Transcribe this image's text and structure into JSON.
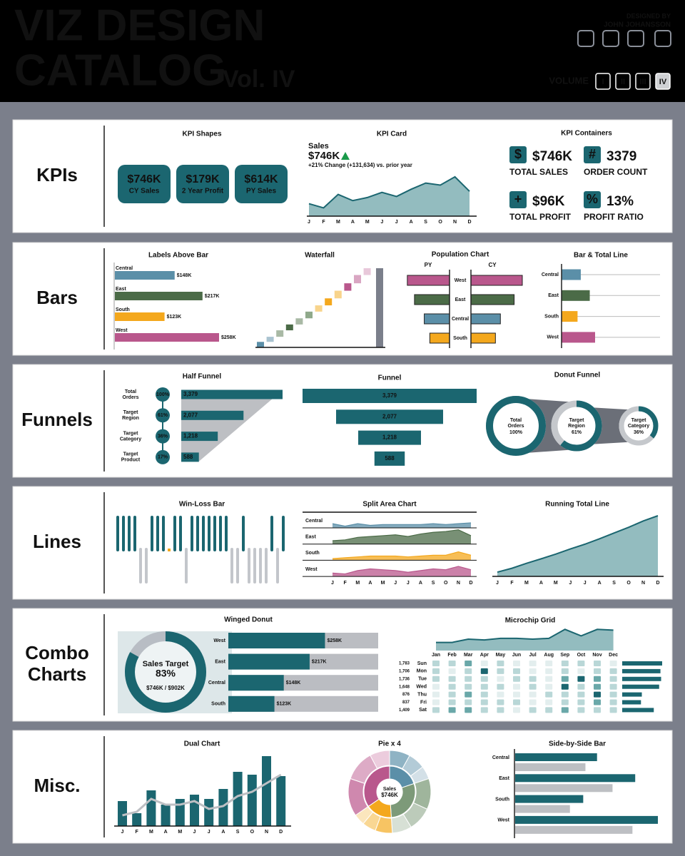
{
  "header": {
    "title_line1": "VIZ DESIGN",
    "title_line2": "CATALOG",
    "subtitle": "Vol. IV",
    "credit_label": "DESIGNED BY",
    "author": "JOHN JOHANSSON",
    "volume_label": "VOLUME",
    "volumes": [
      "I",
      "II",
      "III",
      "IV"
    ],
    "active_volume": "IV"
  },
  "kpis": {
    "label": "KPIs",
    "shapes": {
      "title": "KPI Shapes",
      "items": [
        {
          "value": "$746K",
          "label": "CY Sales"
        },
        {
          "value": "$179K",
          "label": "2 Year Profit"
        },
        {
          "value": "$614K",
          "label": "PY Sales"
        }
      ],
      "color": "#1b6670",
      "value_color": "#f4a81d"
    },
    "card": {
      "title": "KPI Card",
      "label": "Sales",
      "value": "$746K",
      "change": "+21% Change (+131,634) vs. prior year",
      "months": [
        "J",
        "F",
        "M",
        "A",
        "M",
        "J",
        "J",
        "A",
        "S",
        "O",
        "N",
        "D"
      ],
      "values": [
        52,
        48,
        61,
        55,
        58,
        63,
        59,
        66,
        72,
        70,
        78,
        64
      ],
      "ylim": [
        40,
        80
      ],
      "color": "#1b6670",
      "fill": "#93bcbf"
    },
    "containers": {
      "title": "KPI Containers",
      "items": [
        {
          "icon": "$",
          "value": "$746K",
          "label": "TOTAL SALES"
        },
        {
          "icon": "#",
          "value": "3379",
          "label": "ORDER COUNT"
        },
        {
          "icon": "+",
          "value": "$96K",
          "label": "TOTAL PROFIT"
        },
        {
          "icon": "%",
          "value": "13%",
          "label": "PROFIT RATIO"
        }
      ]
    }
  },
  "bars": {
    "label": "Bars",
    "labels_above": {
      "title": "Labels Above Bar",
      "categories": [
        "Central",
        "East",
        "South",
        "West"
      ],
      "values": [
        148,
        217,
        123,
        258
      ],
      "value_labels": [
        "$148K",
        "$217K",
        "$123K",
        "$258K"
      ],
      "colors": [
        "#5b8fa8",
        "#4b6b47",
        "#f4a81d",
        "#b9578c"
      ]
    },
    "waterfall": {
      "title": "Waterfall",
      "values": [
        52,
        48,
        61,
        55,
        58,
        63,
        59,
        66,
        72,
        70,
        78,
        64
      ],
      "colors": [
        "#5b8fa8",
        "#a9c3d0",
        "#a9b9a5",
        "#4b6b47",
        "#a9b9a5",
        "#8fa98b",
        "#f8d48c",
        "#f4a81d",
        "#f8d48c",
        "#b9578c",
        "#d9a6c2",
        "#e8c8da"
      ],
      "total": 746,
      "total_color": "#7b7f8b"
    },
    "population": {
      "title": "Population Chart",
      "left_label": "PY",
      "right_label": "CY",
      "categories": [
        "West",
        "East",
        "Central",
        "South"
      ],
      "left_values": [
        212,
        176,
        127,
        99
      ],
      "right_values": [
        258,
        217,
        148,
        123
      ],
      "colors": [
        "#b9578c",
        "#4b6b47",
        "#5b8fa8",
        "#f4a81d"
      ]
    },
    "bar_total": {
      "title": "Bar & Total Line",
      "categories": [
        "Central",
        "East",
        "South",
        "West"
      ],
      "values": [
        148,
        217,
        123,
        258
      ],
      "colors": [
        "#5b8fa8",
        "#4b6b47",
        "#f4a81d",
        "#b9578c"
      ]
    }
  },
  "funnels": {
    "label": "Funnels",
    "half": {
      "title": "Half Funnel",
      "stages": [
        [
          "Total",
          "Orders"
        ],
        [
          "Target",
          "Region"
        ],
        [
          "Target",
          "Category"
        ],
        [
          "Target",
          "Product"
        ]
      ],
      "pcts": [
        100,
        61,
        36,
        17
      ],
      "pct_labels": [
        "100%",
        "61%",
        "36%",
        "17%"
      ],
      "values": [
        3379,
        2077,
        1218,
        588
      ],
      "value_labels": [
        "3,379",
        "2,077",
        "1,218",
        "588"
      ]
    },
    "funnel": {
      "title": "Funnel",
      "values": [
        3379,
        2077,
        1218,
        588
      ],
      "value_labels": [
        "3,379",
        "2,077",
        "1,218",
        "588"
      ]
    },
    "donut": {
      "title": "Donut Funnel",
      "stages": [
        [
          "Total",
          "Orders"
        ],
        [
          "Target",
          "Region"
        ],
        [
          "Target",
          "Category"
        ]
      ],
      "pcts": [
        100,
        61,
        36
      ],
      "pct_labels": [
        "100%",
        "61%",
        "36%"
      ]
    }
  },
  "lines": {
    "label": "Lines",
    "winloss": {
      "title": "Win-Loss Bar",
      "values": [
        1,
        1,
        1,
        1,
        -1,
        -1,
        1,
        1,
        1,
        0,
        1,
        1,
        -1,
        1,
        1,
        1,
        1,
        1,
        1,
        1,
        -1,
        -1,
        1,
        -1,
        -1,
        -1,
        -1,
        1,
        -1,
        1
      ],
      "win_color": "#1b6670",
      "loss_color": "#c3c6cb",
      "tie_color": "#f4a81d"
    },
    "split": {
      "title": "Split Area Chart",
      "months": [
        "J",
        "F",
        "M",
        "A",
        "M",
        "J",
        "J",
        "A",
        "S",
        "O",
        "N",
        "D"
      ],
      "series": [
        {
          "name": "Central",
          "color": "#5b8fa8",
          "values": [
            5,
            2,
            5,
            3,
            4,
            4,
            4,
            4,
            5,
            4,
            5,
            6
          ]
        },
        {
          "name": "East",
          "color": "#4b6b47",
          "values": [
            4,
            5,
            8,
            9,
            10,
            11,
            9,
            12,
            14,
            15,
            17,
            10
          ]
        },
        {
          "name": "South",
          "color": "#f4a81d",
          "values": [
            2,
            3,
            4,
            5,
            5,
            5,
            4,
            5,
            6,
            6,
            10,
            6
          ]
        },
        {
          "name": "West",
          "color": "#b9578c",
          "values": [
            4,
            3,
            7,
            9,
            8,
            7,
            5,
            7,
            9,
            8,
            12,
            8
          ]
        }
      ]
    },
    "running": {
      "title": "Running Total Line",
      "months": [
        "J",
        "F",
        "M",
        "A",
        "M",
        "J",
        "J",
        "A",
        "S",
        "O",
        "N",
        "D"
      ],
      "values": [
        52,
        48,
        61,
        55,
        58,
        63,
        59,
        66,
        72,
        70,
        78,
        64
      ],
      "color": "#1b6670",
      "fill": "#93bcbf"
    }
  },
  "combo": {
    "label": [
      "Combo",
      "Charts"
    ],
    "winged": {
      "title": "Winged Donut",
      "center_title": "Sales Target",
      "pct": 83,
      "pct_label": "83%",
      "ratio": "$746K / $902K",
      "categories": [
        "West",
        "East",
        "Central",
        "South"
      ],
      "values": [
        258,
        217,
        148,
        123
      ],
      "value_labels": [
        "$258K",
        "$217K",
        "$148K",
        "$123K"
      ],
      "xlim": [
        0,
        400
      ]
    },
    "microchip": {
      "title": "Microchip Grid",
      "months": [
        "Jan",
        "Feb",
        "Mar",
        "Apr",
        "May",
        "Jun",
        "Jul",
        "Aug",
        "Sep",
        "Oct",
        "Nov",
        "Dec"
      ],
      "month_values": [
        10,
        10,
        14,
        13,
        15,
        15,
        14,
        15,
        26,
        18,
        26,
        25
      ],
      "ylim": [
        0,
        28
      ],
      "days": [
        "Sun",
        "Mon",
        "Tue",
        "Wed",
        "Thu",
        "Fri",
        "Sat"
      ],
      "day_values": [
        1783,
        1706,
        1736,
        1648,
        876,
        837,
        1409
      ],
      "day_labels": [
        "1,783",
        "1,706",
        "1,736",
        "1,648",
        "876",
        "837",
        "1,409"
      ],
      "cells": [
        [
          1,
          1,
          2,
          0,
          1,
          0,
          0,
          0,
          1,
          1,
          1,
          0
        ],
        [
          1,
          0,
          1,
          3,
          1,
          1,
          0,
          0,
          1,
          0,
          1,
          1
        ],
        [
          1,
          1,
          1,
          1,
          0,
          1,
          1,
          0,
          2,
          3,
          2,
          1
        ],
        [
          0,
          1,
          1,
          1,
          1,
          0,
          1,
          0,
          3,
          1,
          2,
          1
        ],
        [
          0,
          1,
          2,
          1,
          0,
          0,
          0,
          1,
          1,
          1,
          3,
          1
        ],
        [
          0,
          1,
          1,
          1,
          1,
          1,
          0,
          0,
          1,
          1,
          2,
          1
        ],
        [
          1,
          2,
          2,
          1,
          1,
          0,
          1,
          1,
          2,
          1,
          1,
          1
        ]
      ],
      "level_colors": [
        "#e3eeee",
        "#b9d7d7",
        "#6aa8a9",
        "#1b6670"
      ]
    }
  },
  "misc": {
    "label": "Misc.",
    "dual": {
      "title": "Dual Chart",
      "months": [
        "J",
        "F",
        "M",
        "A",
        "M",
        "J",
        "J",
        "A",
        "S",
        "O",
        "N",
        "D"
      ],
      "bars": [
        35,
        18,
        50,
        30,
        38,
        44,
        38,
        52,
        76,
        72,
        98,
        70
      ],
      "line": [
        15,
        20,
        38,
        30,
        30,
        35,
        24,
        28,
        42,
        48,
        60,
        72
      ]
    },
    "pie": {
      "title": "Pie x 4",
      "center_title": "Sales",
      "center_value": "$746K",
      "values": [
        148,
        217,
        123,
        258
      ],
      "colors": [
        "#5b8fa8",
        "#7d9a79",
        "#f4a81d",
        "#b9578c"
      ],
      "outer_values": [
        60,
        50,
        38,
        90,
        70,
        57,
        50,
        40,
        33,
        110,
        90,
        58
      ],
      "outer_colors": [
        "#8fb3c4",
        "#b3cbd7",
        "#d3e0e7",
        "#9fb59c",
        "#bccbba",
        "#d7e0d5",
        "#f7c463",
        "#f9d793",
        "#fbe6bd",
        "#cf88ae",
        "#ddabc6",
        "#ecccdd"
      ]
    },
    "sbs": {
      "title": "Side-by-Side Bar",
      "categories": [
        "Central",
        "East",
        "South",
        "West"
      ],
      "cy": [
        148,
        217,
        123,
        258
      ],
      "py": [
        127,
        176,
        99,
        212
      ],
      "cy_color": "#1b6670",
      "py_color": "#bdbfc3"
    }
  }
}
